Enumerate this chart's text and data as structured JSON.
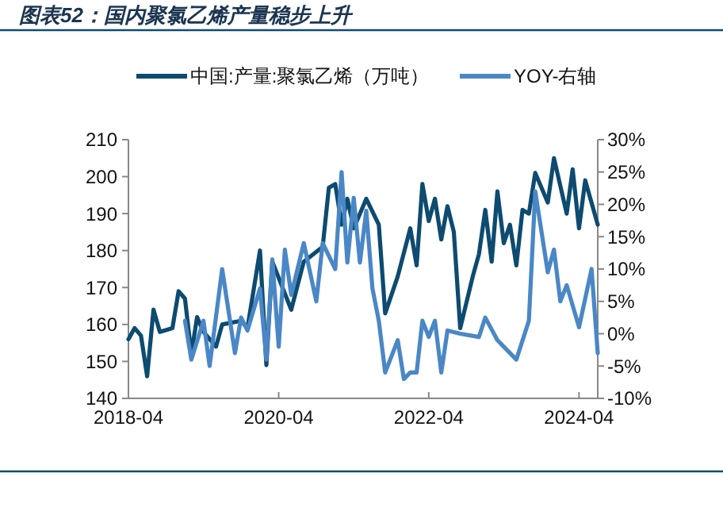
{
  "chart_data": {
    "type": "line",
    "title": "图表52：国内聚氯乙烯产量稳步上升",
    "legend": "top",
    "grid": false,
    "line_style": "solid",
    "marker": "none",
    "xlim": [
      "2018-04",
      "2024-07"
    ],
    "xticks": [
      "2018-04",
      "2020-04",
      "2022-04",
      "2024-04"
    ],
    "ylim": [
      140,
      210
    ],
    "yticks": [
      140,
      150,
      160,
      170,
      180,
      190,
      200,
      210
    ],
    "y2lim": [
      -10,
      30
    ],
    "y2ticks": [
      {
        "value": -10,
        "label": "-10%"
      },
      {
        "value": -5,
        "label": "-5%"
      },
      {
        "value": 0,
        "label": "0%"
      },
      {
        "value": 5,
        "label": "5%"
      },
      {
        "value": 10,
        "label": "10%"
      },
      {
        "value": 15,
        "label": "15%"
      },
      {
        "value": 20,
        "label": "20%"
      },
      {
        "value": 25,
        "label": "25%"
      },
      {
        "value": 30,
        "label": "30%"
      }
    ],
    "series": [
      {
        "name": "中国:产量:聚氯乙烯（万吨）",
        "color": "#0d4b70",
        "x": [
          "2018-04",
          "2018-05",
          "2018-06",
          "2018-07",
          "2018-08",
          "2018-09",
          "2018-11",
          "2018-12",
          "2019-01",
          "2019-02",
          "2019-03",
          "2019-04",
          "2019-06",
          "2019-07",
          "2019-10",
          "2019-11",
          "2020-01",
          "2020-02",
          "2020-03",
          "2020-06",
          "2020-08",
          "2020-11",
          "2020-12",
          "2021-01",
          "2021-02",
          "2021-03",
          "2021-04",
          "2021-06",
          "2021-08",
          "2021-09",
          "2021-11",
          "2022-01",
          "2022-02",
          "2022-03",
          "2022-04",
          "2022-05",
          "2022-06",
          "2022-07",
          "2022-08",
          "2022-09",
          "2022-11",
          "2022-12",
          "2023-01",
          "2023-02",
          "2023-03",
          "2023-04",
          "2023-05",
          "2023-06",
          "2023-07",
          "2023-08",
          "2023-09",
          "2023-11",
          "2023-12",
          "2024-02",
          "2024-03",
          "2024-04",
          "2024-05",
          "2024-07"
        ],
        "values": [
          156,
          159,
          157,
          146,
          164,
          158,
          159,
          169,
          167,
          152,
          162,
          158,
          154,
          160,
          161,
          159,
          180,
          149,
          177,
          164,
          177,
          181,
          197,
          198,
          187,
          194,
          186,
          194,
          187,
          163,
          173,
          186,
          176,
          198,
          188,
          194,
          183,
          192,
          185,
          159,
          173,
          179,
          191,
          177,
          196,
          182,
          187,
          176,
          191,
          190,
          201,
          193,
          205,
          190,
          202,
          186,
          199,
          187
        ]
      },
      {
        "name": "YOY-右轴",
        "color": "#4a87c6",
        "axis": "y2",
        "x": [
          "2019-01",
          "2019-02",
          "2019-04",
          "2019-05",
          "2019-07",
          "2019-09",
          "2019-10",
          "2019-11",
          "2020-01",
          "2020-02",
          "2020-03",
          "2020-04",
          "2020-05",
          "2020-06",
          "2020-08",
          "2020-10",
          "2020-11",
          "2021-01",
          "2021-02",
          "2021-03",
          "2021-04",
          "2021-05",
          "2021-06",
          "2021-07",
          "2021-08",
          "2021-09",
          "2021-11",
          "2021-12",
          "2022-01",
          "2022-02",
          "2022-03",
          "2022-04",
          "2022-05",
          "2022-06",
          "2022-07",
          "2022-09",
          "2022-12",
          "2023-01",
          "2023-03",
          "2023-06",
          "2023-08",
          "2023-09",
          "2023-11",
          "2023-12",
          "2024-01",
          "2024-02",
          "2024-04",
          "2024-06",
          "2024-07"
        ],
        "values": [
          2,
          -4,
          2,
          -5,
          10,
          -3,
          2.5,
          0.5,
          7,
          -4,
          11.5,
          -2,
          13,
          6,
          14,
          5,
          14,
          10,
          25,
          11,
          21,
          11,
          19,
          7,
          2,
          -6,
          -1,
          -7,
          -6,
          -6,
          2,
          -0.5,
          2,
          -6,
          0.5,
          0,
          -0.5,
          2.5,
          -1,
          -4,
          2,
          22,
          9.5,
          13,
          5,
          7.5,
          1,
          10,
          -3
        ]
      }
    ]
  }
}
